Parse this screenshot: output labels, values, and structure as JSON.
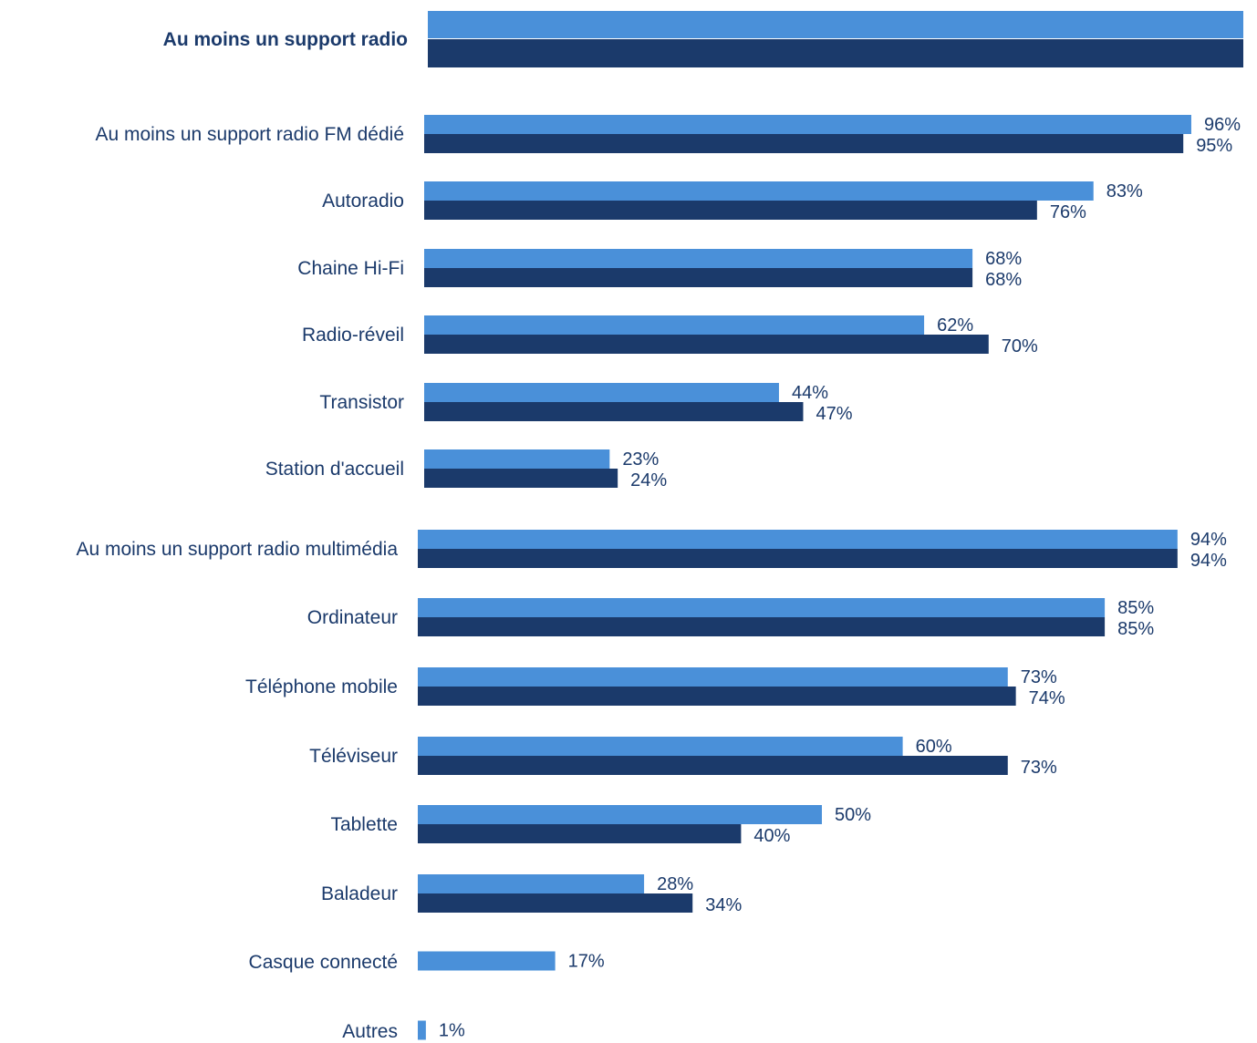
{
  "colors": {
    "series_1": "#4a90d9",
    "series_2": "#1b3a6b",
    "text": "#1b3a6b"
  },
  "chart_data": {
    "type": "bar",
    "orientation": "horizontal",
    "title": "",
    "xlabel": "",
    "ylabel": "",
    "xlim": [
      0,
      100
    ],
    "grid": false,
    "legend": "none",
    "categories": [
      "Au moins un support radio",
      "Au moins un support radio FM dédié",
      "Autoradio",
      "Chaine Hi-Fi",
      "Radio-réveil",
      "Transistor",
      "Station d'accueil",
      "Au moins un support radio multimédia",
      "Ordinateur",
      "Téléphone mobile",
      "Téléviseur",
      "Tablette",
      "Baladeur",
      "Casque connecté",
      "Autres"
    ],
    "bold_categories": [
      "Au moins un support radio"
    ],
    "series": [
      {
        "values": [
          null,
          96,
          83,
          68,
          62,
          44,
          23,
          94,
          85,
          73,
          60,
          50,
          28,
          17,
          1
        ],
        "labels": [
          "",
          "96%",
          "83%",
          "68%",
          "62%",
          "44%",
          "23%",
          "94%",
          "85%",
          "73%",
          "60%",
          "50%",
          "28%",
          "17%",
          "1%"
        ]
      },
      {
        "values": [
          null,
          95,
          76,
          68,
          70,
          47,
          24,
          94,
          85,
          74,
          73,
          40,
          34,
          null,
          null
        ],
        "labels": [
          "",
          "95%",
          "76%",
          "68%",
          "70%",
          "47%",
          "24%",
          "94%",
          "85%",
          "74%",
          "73%",
          "40%",
          "34%",
          "",
          ""
        ]
      }
    ]
  }
}
